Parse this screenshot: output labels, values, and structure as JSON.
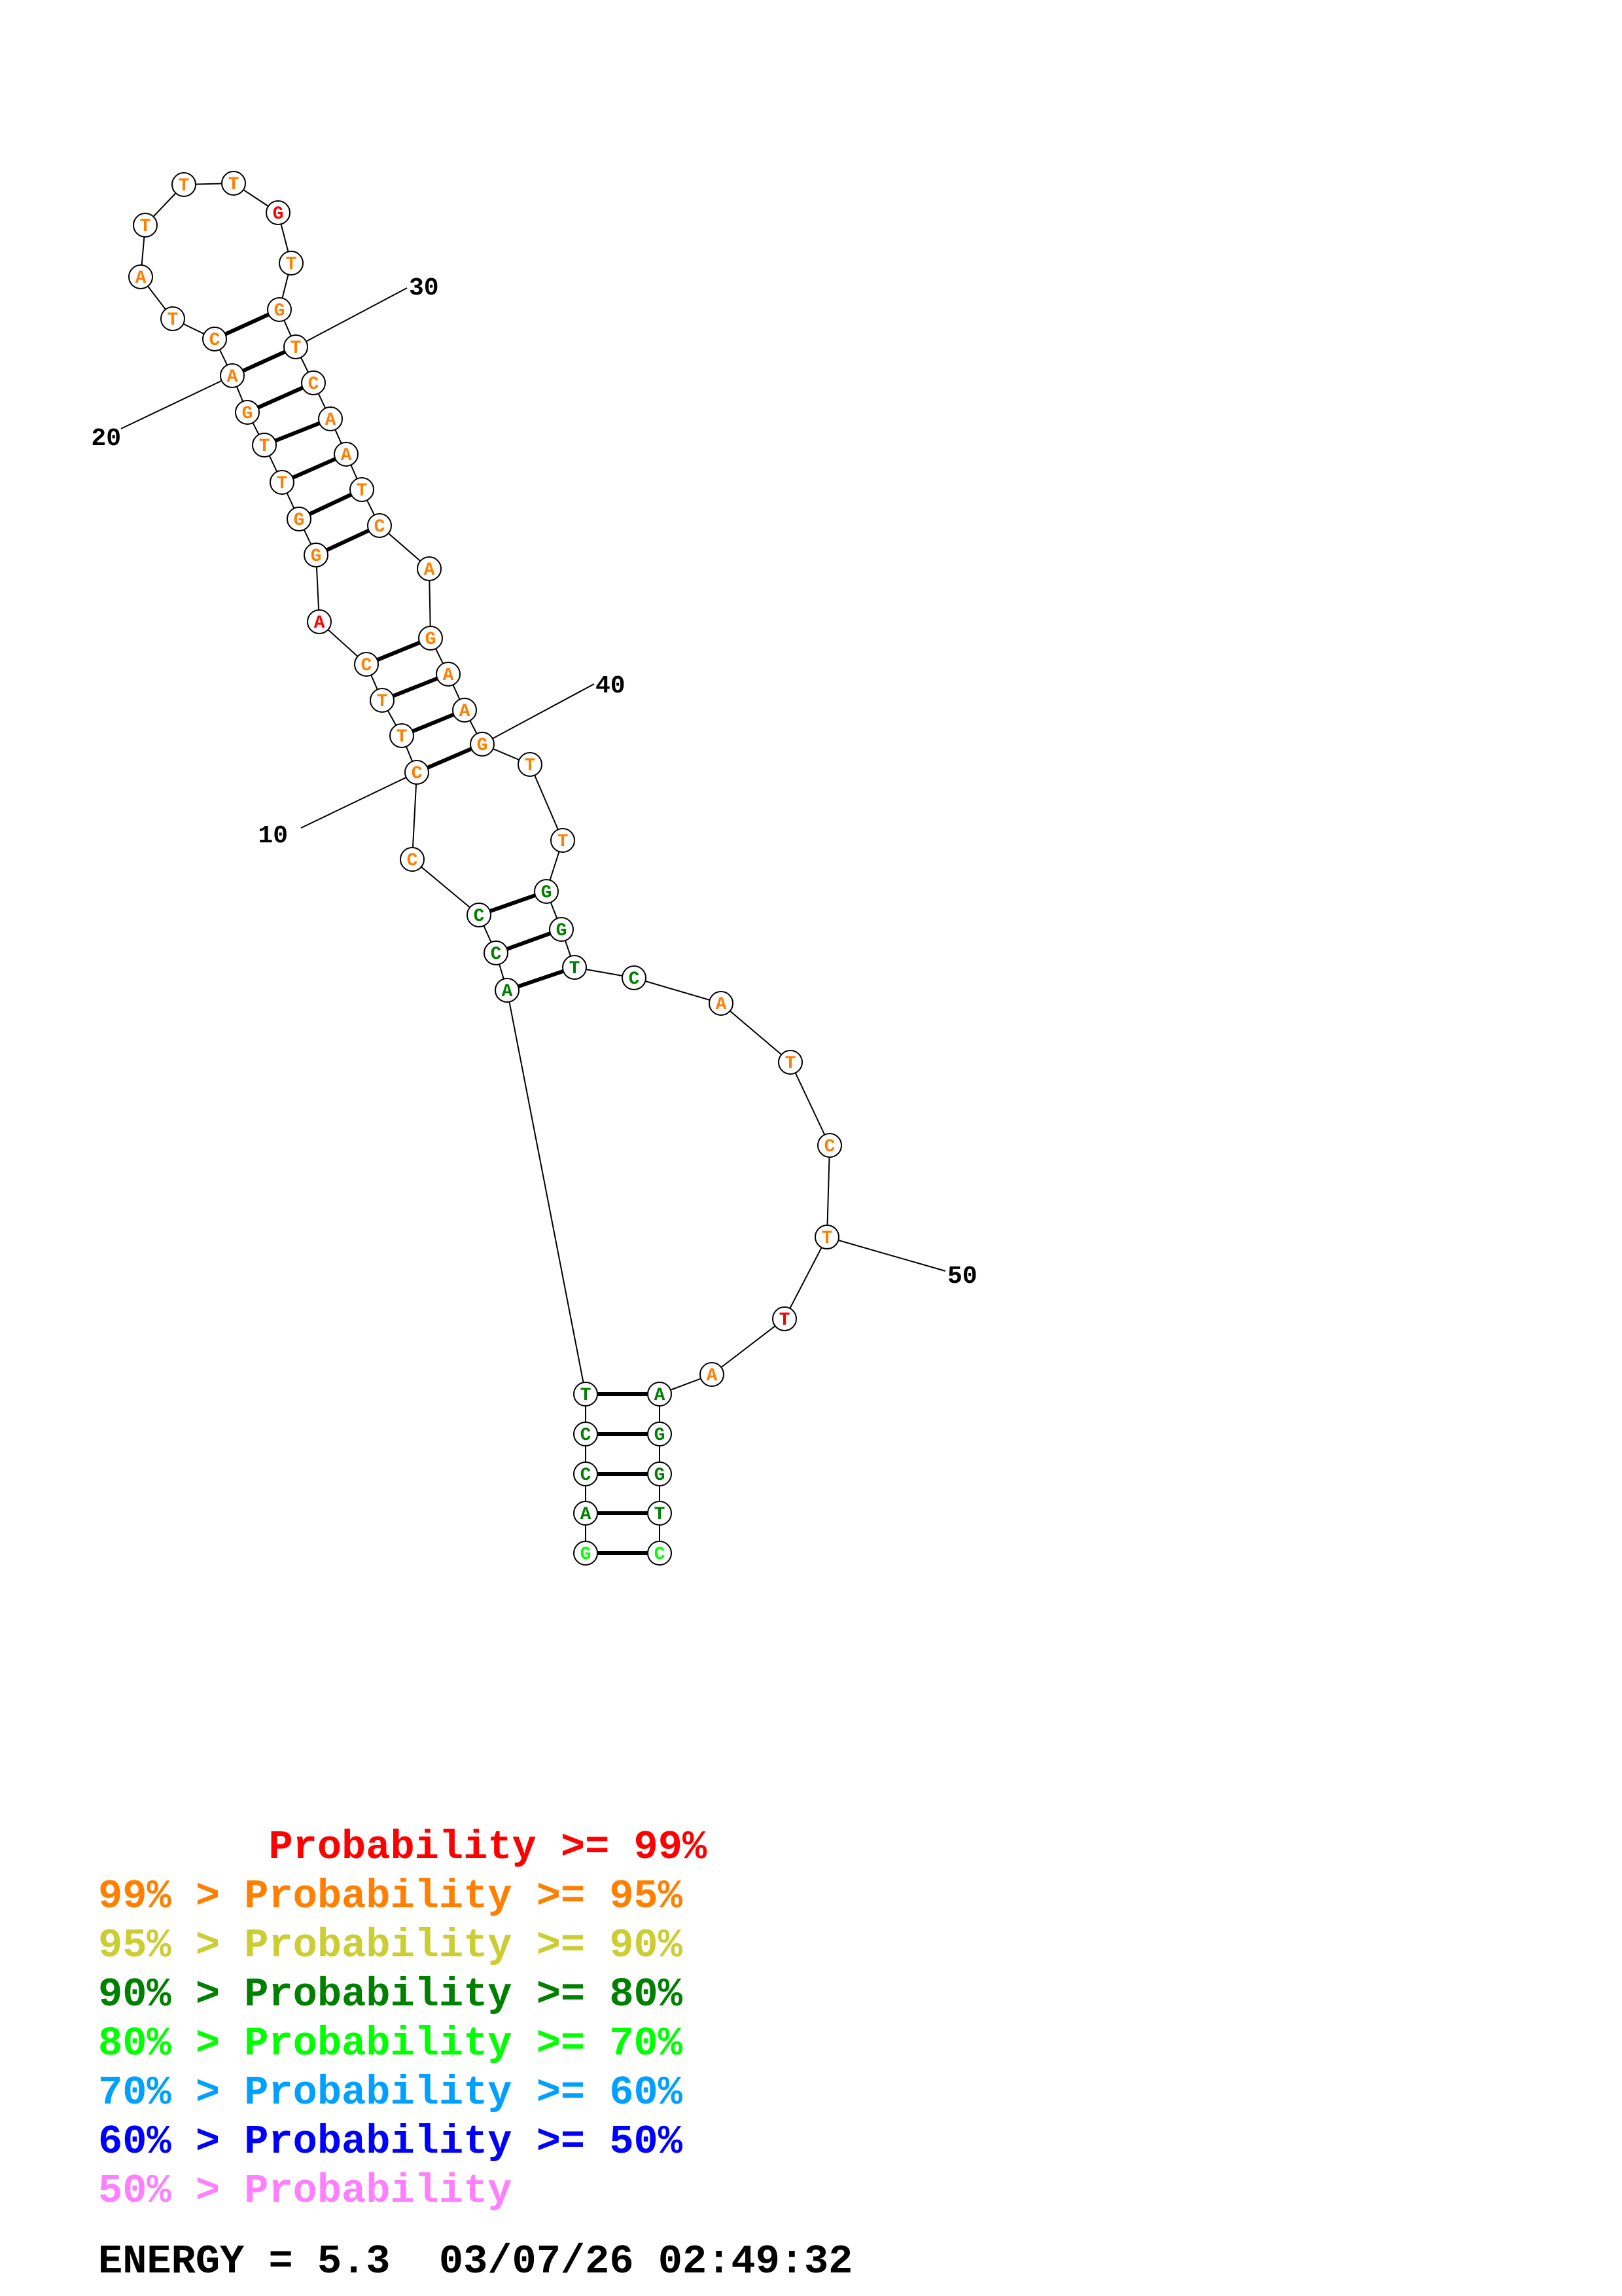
{
  "colors": {
    "p99": "#ff0000",
    "p95": "#ff8000",
    "p90": "#cccc33",
    "p80": "#008000",
    "p70": "#00ff00",
    "p60": "#00a0ff",
    "p50": "#0000ff",
    "plow": "#ff80ff"
  },
  "nucleotides": [
    {
      "n": 1,
      "base": "G",
      "p": "p70"
    },
    {
      "n": 2,
      "base": "A",
      "p": "p80"
    },
    {
      "n": 3,
      "base": "C",
      "p": "p80"
    },
    {
      "n": 4,
      "base": "C",
      "p": "p80"
    },
    {
      "n": 5,
      "base": "T",
      "p": "p80"
    },
    {
      "n": 6,
      "base": "A",
      "p": "p80"
    },
    {
      "n": 7,
      "base": "C",
      "p": "p80"
    },
    {
      "n": 8,
      "base": "C",
      "p": "p80"
    },
    {
      "n": 9,
      "base": "C",
      "p": "p95"
    },
    {
      "n": 10,
      "base": "C",
      "p": "p95"
    },
    {
      "n": 11,
      "base": "T",
      "p": "p95"
    },
    {
      "n": 12,
      "base": "T",
      "p": "p95"
    },
    {
      "n": 13,
      "base": "C",
      "p": "p95"
    },
    {
      "n": 14,
      "base": "A",
      "p": "p99"
    },
    {
      "n": 15,
      "base": "G",
      "p": "p95"
    },
    {
      "n": 16,
      "base": "G",
      "p": "p95"
    },
    {
      "n": 17,
      "base": "T",
      "p": "p95"
    },
    {
      "n": 18,
      "base": "T",
      "p": "p95"
    },
    {
      "n": 19,
      "base": "G",
      "p": "p95"
    },
    {
      "n": 20,
      "base": "A",
      "p": "p95"
    },
    {
      "n": 21,
      "base": "C",
      "p": "p95"
    },
    {
      "n": 22,
      "base": "T",
      "p": "p95"
    },
    {
      "n": 23,
      "base": "A",
      "p": "p95"
    },
    {
      "n": 24,
      "base": "T",
      "p": "p95"
    },
    {
      "n": 25,
      "base": "T",
      "p": "p95"
    },
    {
      "n": 26,
      "base": "T",
      "p": "p95"
    },
    {
      "n": 27,
      "base": "G",
      "p": "p99"
    },
    {
      "n": 28,
      "base": "T",
      "p": "p95"
    },
    {
      "n": 29,
      "base": "G",
      "p": "p95"
    },
    {
      "n": 30,
      "base": "T",
      "p": "p95"
    },
    {
      "n": 31,
      "base": "C",
      "p": "p95"
    },
    {
      "n": 32,
      "base": "A",
      "p": "p95"
    },
    {
      "n": 33,
      "base": "A",
      "p": "p95"
    },
    {
      "n": 34,
      "base": "T",
      "p": "p95"
    },
    {
      "n": 35,
      "base": "C",
      "p": "p95"
    },
    {
      "n": 36,
      "base": "A",
      "p": "p95"
    },
    {
      "n": 37,
      "base": "G",
      "p": "p95"
    },
    {
      "n": 38,
      "base": "A",
      "p": "p95"
    },
    {
      "n": 39,
      "base": "A",
      "p": "p95"
    },
    {
      "n": 40,
      "base": "G",
      "p": "p95"
    },
    {
      "n": 41,
      "base": "T",
      "p": "p95"
    },
    {
      "n": 42,
      "base": "T",
      "p": "p95"
    },
    {
      "n": 43,
      "base": "G",
      "p": "p80"
    },
    {
      "n": 44,
      "base": "G",
      "p": "p80"
    },
    {
      "n": 45,
      "base": "T",
      "p": "p80"
    },
    {
      "n": 46,
      "base": "C",
      "p": "p80"
    },
    {
      "n": 47,
      "base": "A",
      "p": "p95"
    },
    {
      "n": 48,
      "base": "T",
      "p": "p95"
    },
    {
      "n": 49,
      "base": "C",
      "p": "p95"
    },
    {
      "n": 50,
      "base": "T",
      "p": "p95"
    },
    {
      "n": 51,
      "base": "T",
      "p": "p99"
    },
    {
      "n": 52,
      "base": "A",
      "p": "p95"
    },
    {
      "n": 53,
      "base": "A",
      "p": "p80"
    },
    {
      "n": 54,
      "base": "G",
      "p": "p80"
    },
    {
      "n": 55,
      "base": "G",
      "p": "p80"
    },
    {
      "n": 56,
      "base": "T",
      "p": "p80"
    },
    {
      "n": 57,
      "base": "C",
      "p": "p70"
    }
  ],
  "pairs": [
    [
      1,
      57
    ],
    [
      2,
      56
    ],
    [
      3,
      55
    ],
    [
      4,
      54
    ],
    [
      5,
      53
    ],
    [
      6,
      45
    ],
    [
      7,
      44
    ],
    [
      8,
      43
    ],
    [
      10,
      40
    ],
    [
      11,
      39
    ],
    [
      12,
      38
    ],
    [
      13,
      37
    ],
    [
      15,
      35
    ],
    [
      16,
      34
    ],
    [
      17,
      33
    ],
    [
      18,
      32
    ],
    [
      19,
      31
    ],
    [
      20,
      30
    ],
    [
      21,
      29
    ]
  ],
  "position_labels": [
    "10",
    "20",
    "30",
    "40",
    "50"
  ],
  "legend": [
    {
      "text": "       Probability >= 99%",
      "p": "p99"
    },
    {
      "text": "99% > Probability >= 95%",
      "p": "p95"
    },
    {
      "text": "95% > Probability >= 90%",
      "p": "p90"
    },
    {
      "text": "90% > Probability >= 80%",
      "p": "p80"
    },
    {
      "text": "80% > Probability >= 70%",
      "p": "p70"
    },
    {
      "text": "70% > Probability >= 60%",
      "p": "p60"
    },
    {
      "text": "60% > Probability >= 50%",
      "p": "p50"
    },
    {
      "text": "50% > Probability",
      "p": "plow"
    }
  ],
  "footer": {
    "energy_text": "ENERGY = 5.3  03/07/26 02:49:32"
  }
}
